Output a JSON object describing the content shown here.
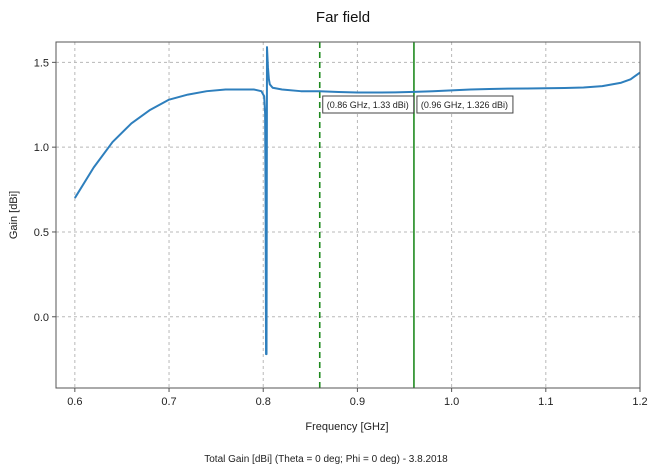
{
  "chart_data": {
    "type": "line",
    "title": "Far field",
    "xlabel": "Frequency [GHz]",
    "ylabel": "Gain [dBi]",
    "footer": "Total Gain [dBi] (Theta = 0 deg; Phi = 0 deg) - 3.8.2018",
    "xlim": [
      0.58,
      1.2
    ],
    "ylim": [
      -0.42,
      1.62
    ],
    "x_ticks": [
      0.6,
      0.7,
      0.8,
      0.9,
      1.0,
      1.1,
      1.2
    ],
    "x_tick_labels": [
      "0.6",
      "0.7",
      "0.8",
      "0.9",
      "1.0",
      "1.1",
      "1.2"
    ],
    "y_ticks": [
      0.0,
      0.5,
      1.0,
      1.5
    ],
    "y_tick_labels": [
      "0.0",
      "0.5",
      "1.0",
      "1.5"
    ],
    "grid": true,
    "colors": {
      "series": "#2e7fbd",
      "marker": "#1f8a1f"
    },
    "series": [
      {
        "x": [
          0.6,
          0.62,
          0.64,
          0.66,
          0.68,
          0.7,
          0.72,
          0.74,
          0.76,
          0.78,
          0.79,
          0.798,
          0.801,
          0.802,
          0.8025,
          0.803,
          0.8035,
          0.804,
          0.805,
          0.806,
          0.807,
          0.81,
          0.82,
          0.84,
          0.86,
          0.88,
          0.9,
          0.92,
          0.94,
          0.96,
          0.98,
          1.0,
          1.02,
          1.04,
          1.06,
          1.08,
          1.1,
          1.12,
          1.14,
          1.16,
          1.18,
          1.19,
          1.2
        ],
        "y": [
          0.7,
          0.88,
          1.03,
          1.14,
          1.22,
          1.28,
          1.31,
          1.33,
          1.34,
          1.34,
          1.34,
          1.33,
          1.3,
          1.2,
          0.7,
          -0.22,
          -0.22,
          1.59,
          1.47,
          1.4,
          1.37,
          1.35,
          1.34,
          1.33,
          1.33,
          1.325,
          1.322,
          1.322,
          1.323,
          1.326,
          1.33,
          1.335,
          1.34,
          1.343,
          1.345,
          1.346,
          1.347,
          1.349,
          1.352,
          1.36,
          1.38,
          1.4,
          1.44
        ]
      }
    ],
    "markers": [
      {
        "x": 0.86,
        "style": "dashed",
        "label": "(0.86 GHz, 1.33 dBi)"
      },
      {
        "x": 0.96,
        "style": "solid",
        "label": "(0.96 GHz, 1.326 dBi)"
      }
    ]
  }
}
